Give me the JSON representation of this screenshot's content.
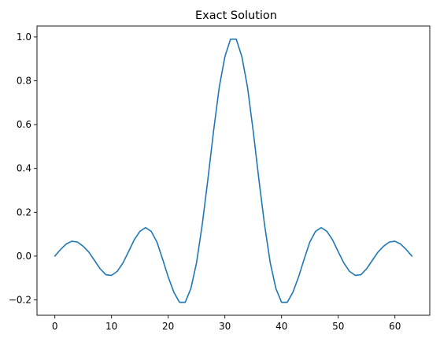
{
  "chart_data": {
    "type": "line",
    "title": "Exact Solution",
    "xlabel": "",
    "ylabel": "",
    "xlim": [
      -3.15,
      66.15
    ],
    "ylim": [
      -0.27,
      1.05
    ],
    "x_ticks": [
      0,
      10,
      20,
      30,
      40,
      50,
      60
    ],
    "y_ticks": [
      -0.2,
      0.0,
      0.2,
      0.4,
      0.6,
      0.8,
      1.0
    ],
    "x_tick_labels": [
      "0",
      "10",
      "20",
      "30",
      "40",
      "50",
      "60"
    ],
    "y_tick_labels": [
      "−0.2",
      "0.0",
      "0.2",
      "0.4",
      "0.6",
      "0.8",
      "1.0"
    ],
    "grid": false,
    "series": [
      {
        "color": "#1f77b4",
        "x": [
          0,
          1,
          2,
          3,
          4,
          5,
          6,
          7,
          8,
          9,
          10,
          11,
          12,
          13,
          14,
          15,
          16,
          17,
          18,
          19,
          20,
          21,
          22,
          23,
          24,
          25,
          26,
          27,
          28,
          29,
          30,
          31,
          32,
          33,
          34,
          35,
          36,
          37,
          38,
          39,
          40,
          41,
          42,
          43,
          44,
          45,
          46,
          47,
          48,
          49,
          50,
          51,
          52,
          53,
          54,
          55,
          56,
          57,
          58,
          59,
          60,
          61,
          62,
          63
        ],
        "values": [
          0.0,
          0.03,
          0.055,
          0.068,
          0.064,
          0.045,
          0.018,
          -0.02,
          -0.058,
          -0.085,
          -0.088,
          -0.07,
          -0.032,
          0.02,
          0.074,
          0.113,
          0.13,
          0.113,
          0.065,
          -0.013,
          -0.095,
          -0.165,
          -0.211,
          -0.211,
          -0.148,
          -0.03,
          0.143,
          0.35,
          0.57,
          0.77,
          0.91,
          0.99,
          0.99,
          0.91,
          0.77,
          0.57,
          0.35,
          0.143,
          -0.03,
          -0.148,
          -0.211,
          -0.211,
          -0.165,
          -0.095,
          -0.013,
          0.065,
          0.113,
          0.13,
          0.113,
          0.074,
          0.02,
          -0.032,
          -0.07,
          -0.088,
          -0.085,
          -0.058,
          -0.02,
          0.018,
          0.045,
          0.064,
          0.068,
          0.055,
          0.03,
          0.0
        ]
      }
    ]
  }
}
